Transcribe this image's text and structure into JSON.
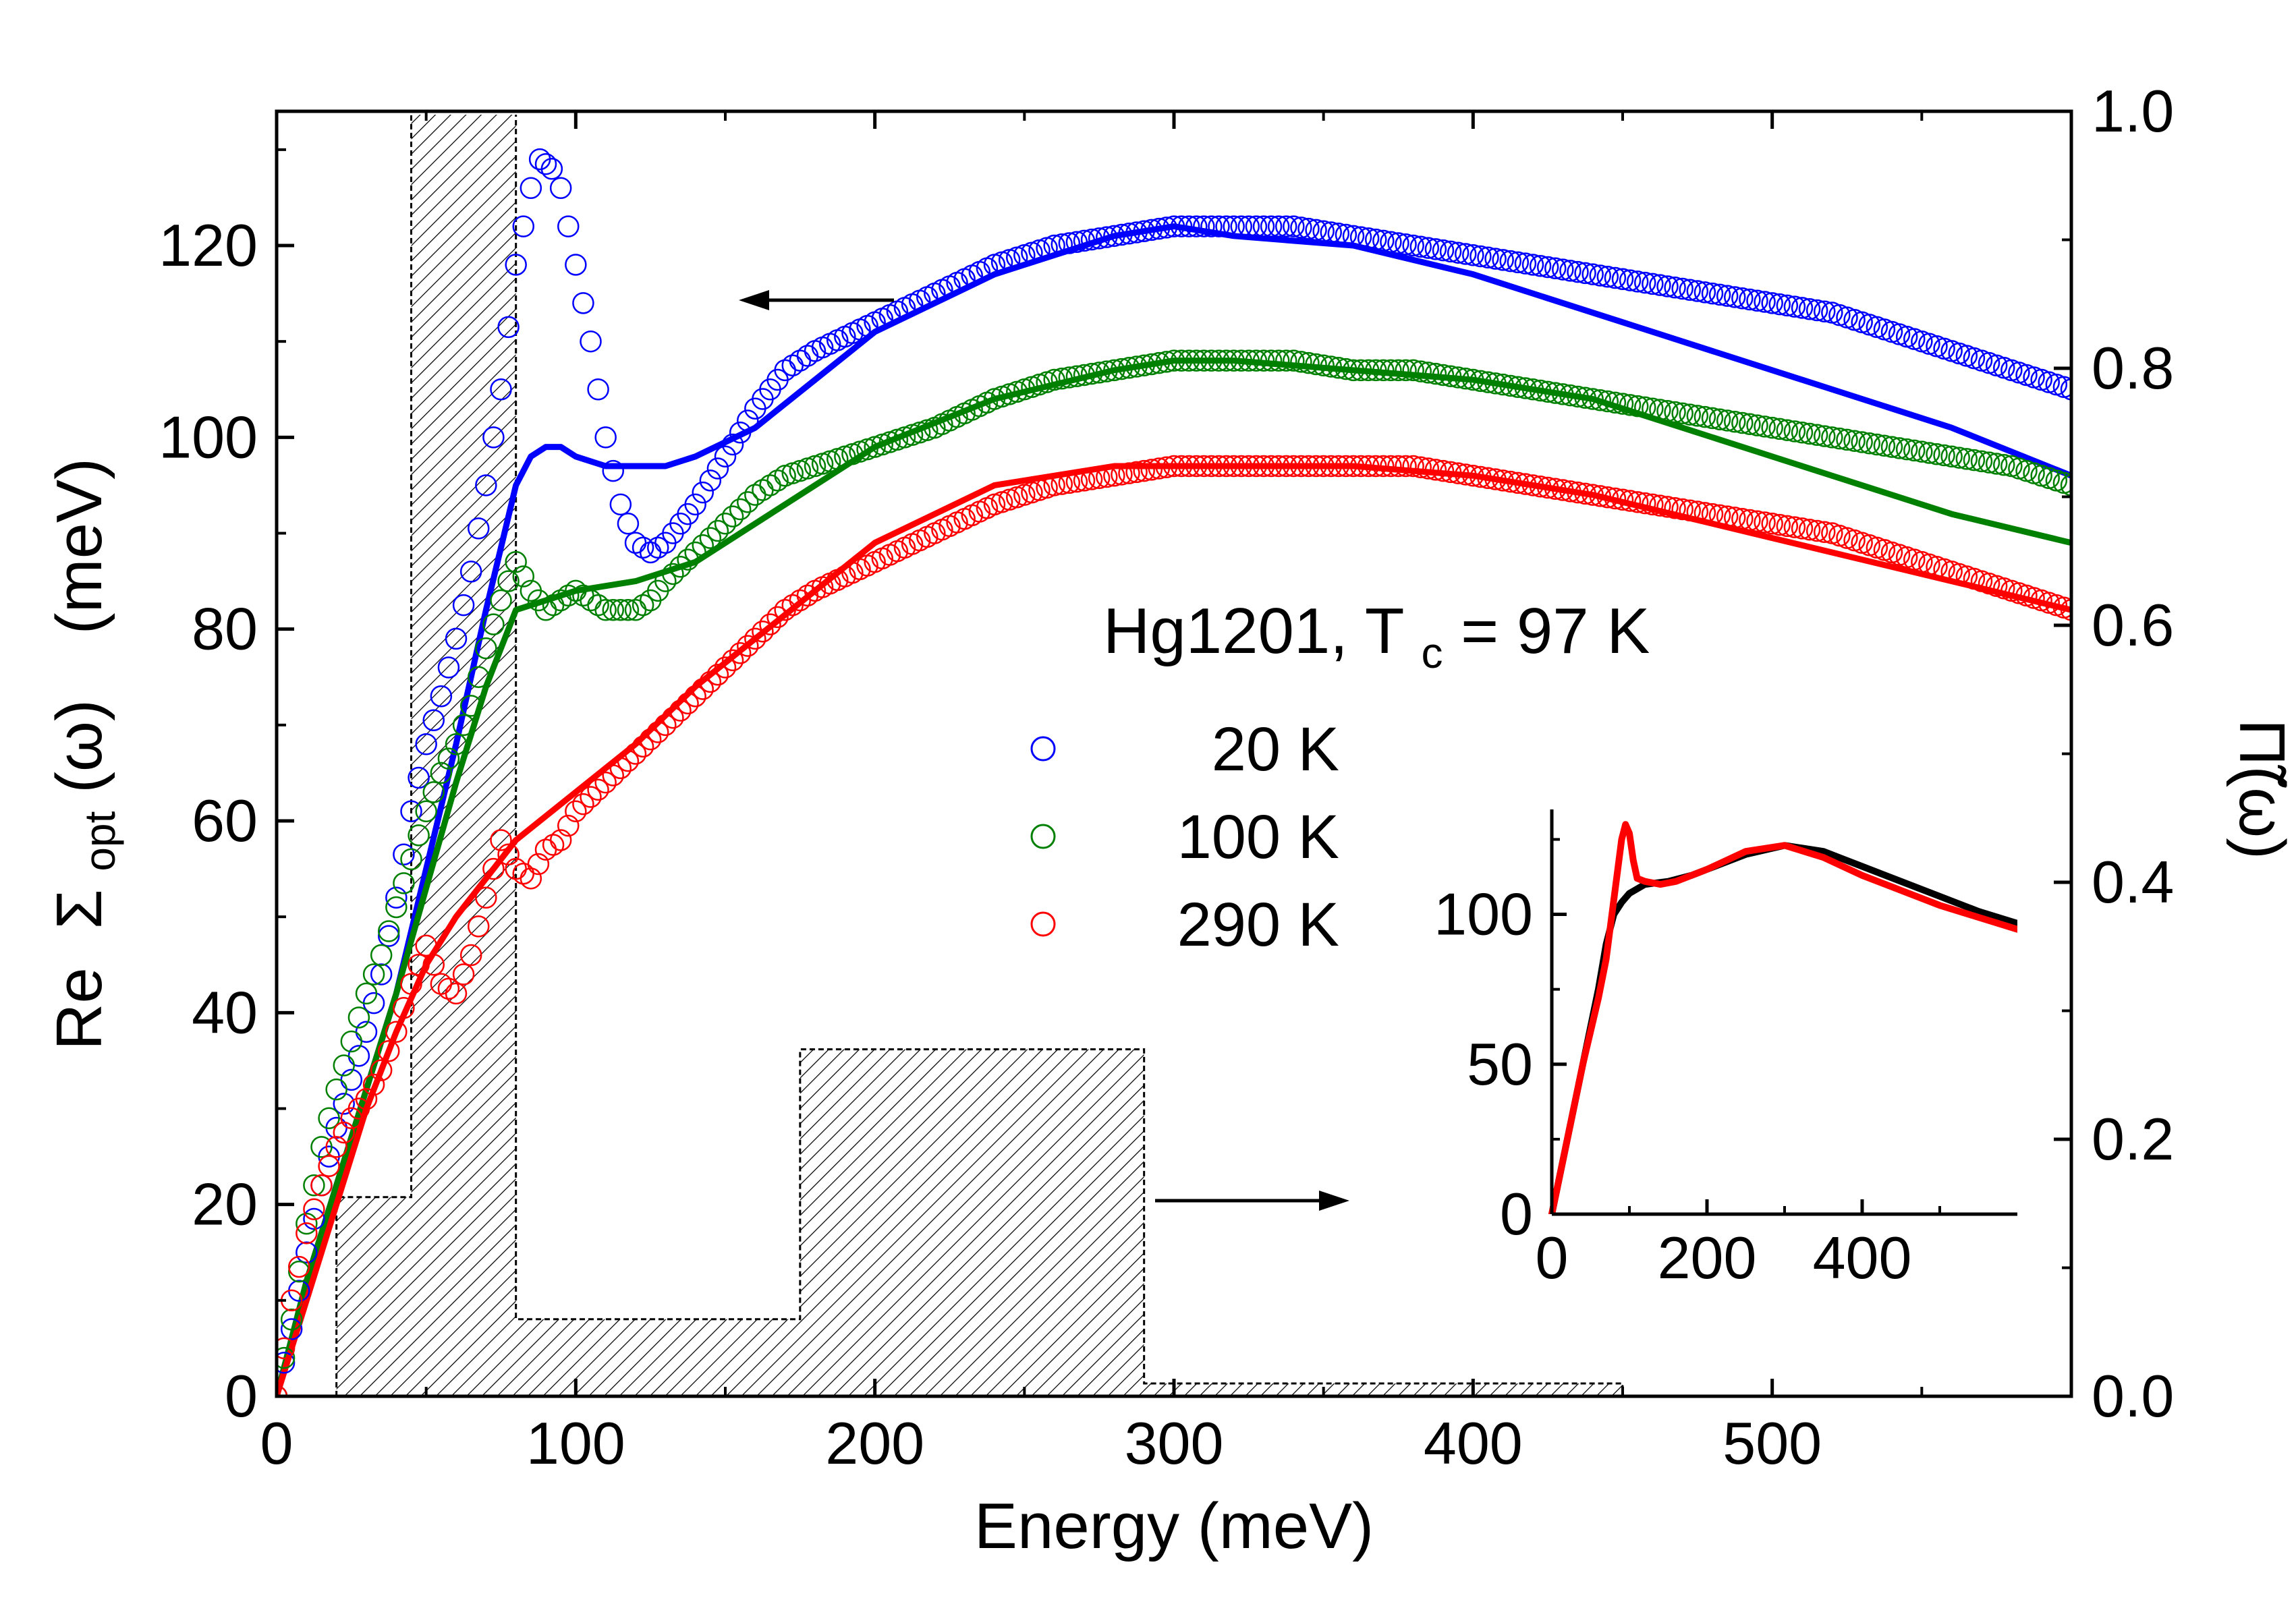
{
  "chart_data": {
    "type": "scatter",
    "title": "Hg1201, T",
    "title_sub": "c",
    "title_tail": " = 97 K",
    "xlabel": "Energy (meV)",
    "ylabel_left_prefix": "Re",
    "ylabel_left_sigma": "Σ",
    "ylabel_left_sub": "opt",
    "ylabel_left_arg": "(ω)",
    "ylabel_left_unit": "(meV)",
    "ylabel_right": "Π̃(ω)",
    "xlim": [
      0,
      600
    ],
    "ylim_left": [
      0,
      134
    ],
    "ylim_right": [
      0,
      1.0
    ],
    "x_ticks": [
      "0",
      "100",
      "200",
      "300",
      "400",
      "500"
    ],
    "x_tick_values": [
      0,
      100,
      200,
      300,
      400,
      500
    ],
    "y_left_ticks": [
      "0",
      "20",
      "40",
      "60",
      "80",
      "100",
      "120"
    ],
    "y_left_tick_values": [
      0,
      20,
      40,
      60,
      80,
      100,
      120
    ],
    "y_right_ticks": [
      "0.0",
      "0.2",
      "0.4",
      "0.6",
      "0.8",
      "1.0"
    ],
    "y_right_tick_values": [
      0.0,
      0.2,
      0.4,
      0.6,
      0.8,
      1.0
    ],
    "series": [
      {
        "name": "20 K",
        "legend_label": "20 K",
        "color": "#0000ff",
        "data_x": [
          0,
          5,
          10,
          15,
          20,
          25,
          30,
          35,
          40,
          45,
          50,
          55,
          60,
          65,
          70,
          75,
          80,
          85,
          88,
          92,
          95,
          100,
          105,
          110,
          115,
          120,
          125,
          130,
          135,
          140,
          150,
          160,
          170,
          180,
          200,
          220,
          240,
          260,
          280,
          300,
          320,
          340,
          360,
          380,
          400,
          420,
          440,
          460,
          480,
          500,
          520,
          540,
          560,
          580,
          600
        ],
        "data_y": [
          0,
          7,
          15,
          22,
          28,
          33,
          38,
          44,
          52,
          61,
          68,
          73,
          79,
          86,
          95,
          105,
          118,
          126,
          129,
          128,
          126,
          118,
          110,
          100,
          93,
          89,
          88,
          89,
          91,
          93,
          98,
          103,
          107,
          109,
          112,
          115,
          118,
          120,
          121,
          122,
          122,
          122,
          121,
          120,
          119,
          118,
          117,
          116,
          115,
          114,
          113,
          111,
          109,
          107,
          105
        ],
        "fit_x": [
          0,
          10,
          20,
          30,
          40,
          50,
          60,
          70,
          80,
          85,
          90,
          95,
          100,
          110,
          120,
          130,
          140,
          160,
          180,
          200,
          240,
          280,
          300,
          320,
          360,
          400,
          440,
          480,
          520,
          560,
          600
        ],
        "fit_y": [
          0,
          12,
          22,
          32,
          42,
          55,
          68,
          82,
          95,
          98,
          99,
          99,
          98,
          97,
          97,
          97,
          98,
          101,
          106,
          111,
          117,
          121,
          122,
          121,
          120,
          117,
          113,
          109,
          105,
          101,
          96
        ]
      },
      {
        "name": "100 K",
        "legend_label": "100 K",
        "color": "#008000",
        "data_x": [
          0,
          5,
          10,
          15,
          20,
          25,
          30,
          35,
          40,
          45,
          50,
          55,
          60,
          65,
          70,
          75,
          80,
          85,
          90,
          95,
          100,
          105,
          110,
          115,
          120,
          125,
          130,
          140,
          150,
          160,
          170,
          180,
          200,
          220,
          240,
          260,
          280,
          300,
          320,
          340,
          360,
          380,
          400,
          420,
          440,
          460,
          480,
          500,
          520,
          540,
          560,
          580,
          600
        ],
        "data_y": [
          0,
          8,
          18,
          26,
          32,
          37,
          42,
          46,
          51,
          56,
          61,
          65,
          68,
          72,
          78,
          83,
          87,
          84,
          82,
          83,
          84,
          83,
          82,
          82,
          82,
          83,
          85,
          88,
          91,
          94,
          96,
          97,
          99,
          101,
          104,
          106,
          107,
          108,
          108,
          108,
          107,
          107,
          106,
          105,
          104,
          103,
          102,
          101,
          100,
          99,
          98,
          97,
          95
        ],
        "fit_x": [
          0,
          10,
          20,
          30,
          40,
          50,
          60,
          70,
          80,
          90,
          100,
          120,
          140,
          160,
          180,
          200,
          240,
          280,
          300,
          320,
          360,
          400,
          440,
          480,
          520,
          560,
          600
        ],
        "fit_y": [
          0,
          12,
          22,
          32,
          42,
          53,
          64,
          74,
          82,
          83,
          84,
          85,
          87,
          91,
          95,
          99,
          104,
          107,
          108,
          108,
          107,
          106,
          104,
          100,
          96,
          92,
          89
        ]
      },
      {
        "name": "290 K",
        "legend_label": "290 K",
        "color": "#ff0000",
        "data_x": [
          0,
          5,
          10,
          15,
          20,
          25,
          30,
          35,
          40,
          45,
          50,
          55,
          60,
          65,
          70,
          75,
          80,
          85,
          90,
          95,
          100,
          110,
          120,
          130,
          140,
          150,
          160,
          170,
          180,
          200,
          220,
          240,
          260,
          280,
          300,
          320,
          340,
          360,
          380,
          400,
          420,
          440,
          460,
          480,
          500,
          520,
          540,
          560,
          580,
          600
        ],
        "data_y": [
          0,
          10,
          17,
          22,
          26,
          29,
          31,
          34,
          38,
          43,
          47,
          43,
          42,
          46,
          52,
          58,
          55,
          54,
          57,
          58,
          61,
          64,
          67,
          70,
          73,
          76,
          79,
          82,
          84,
          87,
          90,
          93,
          95,
          96,
          97,
          97,
          97,
          97,
          97,
          96,
          95,
          94,
          93,
          92,
          91,
          90,
          88,
          86,
          84,
          82
        ],
        "fit_x": [
          0,
          10,
          20,
          30,
          40,
          50,
          60,
          70,
          80,
          100,
          120,
          140,
          160,
          180,
          200,
          240,
          280,
          300,
          320,
          360,
          400,
          440,
          480,
          520,
          560,
          600
        ],
        "fit_y": [
          0,
          10,
          20,
          30,
          38,
          45,
          50,
          54,
          58,
          63,
          68,
          74,
          79,
          84,
          89,
          95,
          97,
          97,
          97,
          97,
          96,
          94,
          91,
          88,
          85,
          82
        ]
      }
    ],
    "bosonic_histogram": {
      "edges": [
        20,
        45,
        80,
        175,
        290,
        450
      ],
      "values": [
        0.155,
        1.0,
        0.06,
        0.27,
        0.01
      ]
    },
    "inset": {
      "type": "line",
      "xlim": [
        0,
        600
      ],
      "ylim": [
        0,
        135
      ],
      "x_ticks": [
        "0",
        "200",
        "400"
      ],
      "x_tick_values": [
        0,
        200,
        400
      ],
      "y_ticks": [
        "0",
        "50",
        "100"
      ],
      "y_tick_values": [
        0,
        50,
        100
      ],
      "series": [
        {
          "name": "black",
          "color": "#000000",
          "x": [
            0,
            20,
            40,
            60,
            70,
            80,
            90,
            100,
            120,
            150,
            180,
            200,
            250,
            300,
            350,
            400,
            450,
            500,
            550,
            600
          ],
          "y": [
            0,
            25,
            50,
            75,
            90,
            100,
            104,
            107,
            110,
            111,
            113,
            115,
            120,
            123,
            121,
            116,
            111,
            106,
            101,
            97
          ]
        },
        {
          "name": "red",
          "color": "#ff0000",
          "x": [
            0,
            20,
            40,
            60,
            70,
            80,
            90,
            95,
            100,
            105,
            110,
            120,
            140,
            160,
            180,
            200,
            250,
            300,
            350,
            400,
            450,
            500,
            550,
            600
          ],
          "y": [
            0,
            25,
            50,
            72,
            85,
            105,
            125,
            130,
            127,
            118,
            112,
            111,
            110,
            111,
            113,
            115,
            121,
            123,
            119,
            113,
            108,
            103,
            99,
            95
          ]
        }
      ]
    }
  }
}
